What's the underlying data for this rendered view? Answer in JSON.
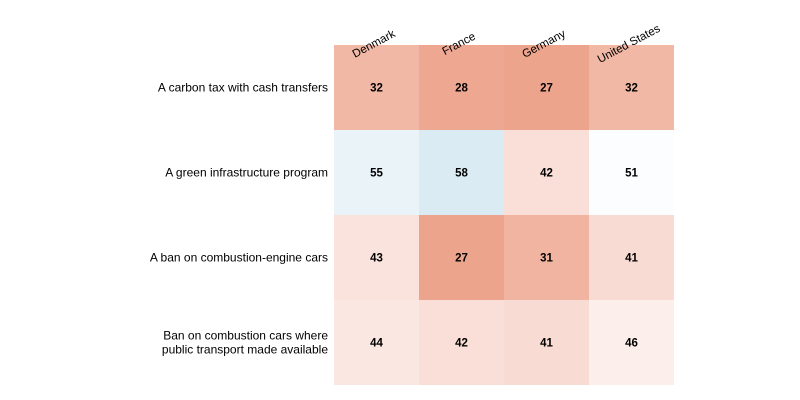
{
  "chart_data": {
    "type": "heatmap",
    "title": "",
    "xlabel": "",
    "ylabel": "",
    "columns": [
      "Denmark",
      "France",
      "Germany",
      "United States"
    ],
    "rows": [
      [
        "A carbon tax with cash transfers"
      ],
      [
        "A green infrastructure program"
      ],
      [
        "A ban on combustion-engine cars"
      ],
      [
        "Ban on combustion cars where",
        "public transport made available"
      ]
    ],
    "values": [
      [
        32,
        28,
        27,
        32
      ],
      [
        55,
        58,
        42,
        51
      ],
      [
        43,
        27,
        31,
        41
      ],
      [
        44,
        42,
        41,
        46
      ]
    ],
    "color_scale": {
      "type": "diverging",
      "midpoint": 50,
      "low_color": "#e8886a",
      "mid_color": "#ffffff",
      "high_color": "#a6cde3",
      "low_value": 20,
      "high_value": 70
    },
    "legend": "none",
    "grid": false
  }
}
